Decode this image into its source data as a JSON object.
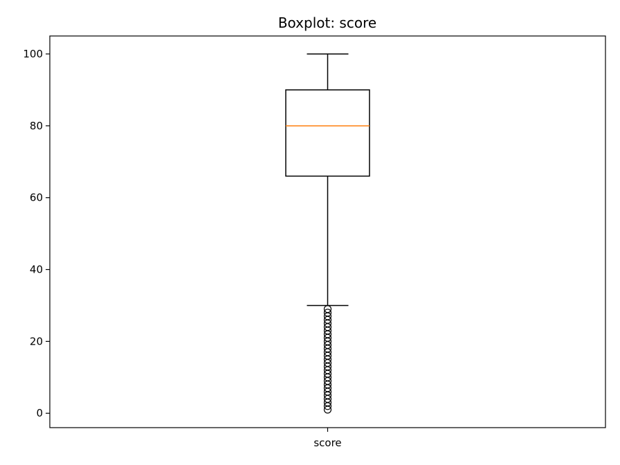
{
  "chart_data": {
    "type": "boxplot",
    "title": "Boxplot: score",
    "xlabel": "",
    "ylabel": "",
    "categories": [
      "score"
    ],
    "ylim": [
      -4,
      105
    ],
    "y_ticks": [
      "0",
      "20",
      "40",
      "60",
      "80",
      "100"
    ],
    "grid": false,
    "boxes": [
      {
        "label": "score",
        "whisker_low": 30,
        "q1": 66,
        "median": 80,
        "q3": 90,
        "whisker_high": 100,
        "outliers": [
          1,
          2,
          3,
          4,
          5,
          6,
          7,
          8,
          9,
          10,
          11,
          12,
          13,
          14,
          15,
          16,
          17,
          18,
          19,
          20,
          21,
          22,
          23,
          24,
          25,
          26,
          27,
          28,
          29
        ]
      }
    ],
    "colors": {
      "box": "#000000",
      "median": "#ff7f0e",
      "outlier": "#000000",
      "axes": "#000000"
    }
  }
}
